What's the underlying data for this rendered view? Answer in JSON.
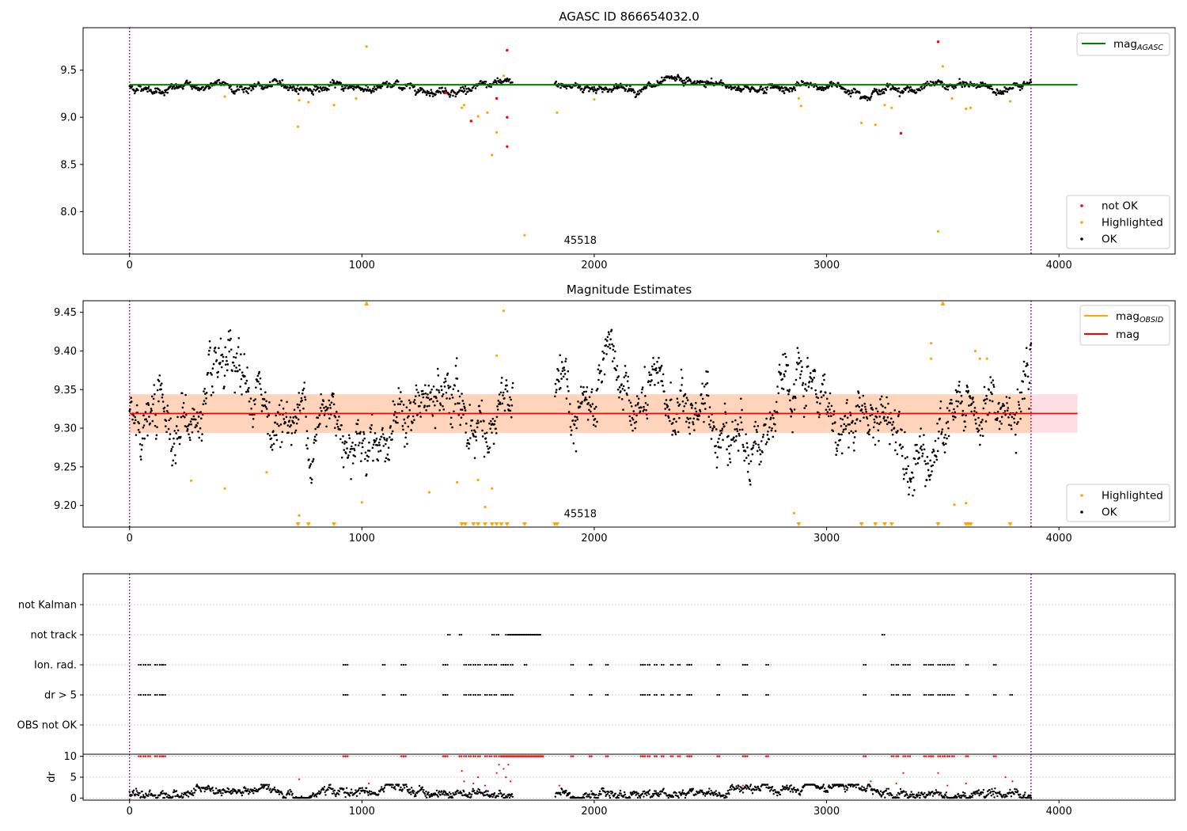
{
  "colors": {
    "ok": "#000000",
    "highlighted": "#ffa500",
    "not_ok": "#ff0000",
    "mag_agasc_line": "#008000",
    "mag_line": "#ff0000",
    "mag_obsid": "#ffa500",
    "band": "#ffb6c1",
    "obs_boundary": "#800080",
    "grid": "#b0b0b0"
  },
  "chart_data": [
    {
      "type": "scatter",
      "title": "AGASC ID 866654032.0",
      "xlim": [
        -200,
        4500
      ],
      "ylim": [
        7.55,
        9.95
      ],
      "xticks": [
        "0",
        "1000",
        "2000",
        "3000",
        "4000"
      ],
      "yticks": [
        "8.0",
        "8.5",
        "9.0",
        "9.5"
      ],
      "reference_line": {
        "name": "mag_AGASC",
        "y": 9.345,
        "x_range": [
          0,
          4080
        ]
      },
      "obs_boundaries": [
        0,
        3880
      ],
      "annotation": {
        "text": "45518",
        "x": 1940,
        "y": 7.66
      },
      "series": [
        {
          "name": "not OK",
          "color": "#ff0000",
          "points": [
            [
              1625,
              9.71
            ],
            [
              1470,
              8.96
            ],
            [
              1625,
              8.69
            ],
            [
              1625,
              9.0
            ],
            [
              1580,
              9.2
            ],
            [
              3320,
              8.83
            ],
            [
              3480,
              9.8
            ],
            [
              1360,
              9.26
            ]
          ]
        },
        {
          "name": "Highlighted",
          "color": "#ffa500",
          "points": [
            [
              1020,
              9.75
            ],
            [
              725,
              8.9
            ],
            [
              730,
              9.18
            ],
            [
              770,
              9.16
            ],
            [
              880,
              9.13
            ],
            [
              975,
              9.2
            ],
            [
              1700,
              7.75
            ],
            [
              1560,
              8.6
            ],
            [
              1580,
              8.84
            ],
            [
              1430,
              9.1
            ],
            [
              1440,
              9.13
            ],
            [
              1500,
              9.01
            ],
            [
              1540,
              9.05
            ],
            [
              1610,
              9.44
            ],
            [
              3150,
              8.94
            ],
            [
              3210,
              8.92
            ],
            [
              3250,
              9.13
            ],
            [
              3280,
              9.1
            ],
            [
              2880,
              9.2
            ],
            [
              2890,
              9.12
            ],
            [
              3480,
              7.79
            ],
            [
              3500,
              9.54
            ],
            [
              3540,
              9.2
            ],
            [
              3600,
              9.09
            ],
            [
              3620,
              9.1
            ],
            [
              3790,
              9.17
            ],
            [
              410,
              9.22
            ],
            [
              2000,
              9.19
            ],
            [
              1840,
              9.05
            ]
          ]
        },
        {
          "name": "OK",
          "color": "#000000",
          "generated": {
            "x_start": 0,
            "x_end": 3880,
            "gap": [
              1650,
              1830
            ],
            "center": 9.32,
            "spread": 0.03,
            "count": 1400
          }
        }
      ],
      "legend": [
        "not OK",
        "Highlighted",
        "OK",
        "mag_AGASC"
      ]
    },
    {
      "type": "scatter",
      "title": "Magnitude Estimates",
      "xlim": [
        -200,
        4500
      ],
      "ylim": [
        9.172,
        9.465
      ],
      "xticks": [
        "0",
        "1000",
        "2000",
        "3000",
        "4000"
      ],
      "yticks": [
        "9.20",
        "9.25",
        "9.30",
        "9.35",
        "9.40",
        "9.45"
      ],
      "mag_line": {
        "name": "mag",
        "y": 9.319,
        "x_range": [
          0,
          4080
        ]
      },
      "band": {
        "low": 9.294,
        "high": 9.344
      },
      "obs_boundaries": [
        0,
        3880
      ],
      "annotation": {
        "text": "45518",
        "x": 1940,
        "y": 9.185
      },
      "series": [
        {
          "name": "Highlighted",
          "color": "#ffa500",
          "points": [
            [
              1020,
              9.462
            ],
            [
              3500,
              9.462
            ],
            [
              1610,
              9.452
            ],
            [
              1580,
              9.394
            ],
            [
              3450,
              9.41
            ],
            [
              3450,
              9.39
            ],
            [
              3640,
              9.4
            ],
            [
              3660,
              9.39
            ],
            [
              3690,
              9.39
            ],
            [
              265,
              9.232
            ],
            [
              410,
              9.222
            ],
            [
              590,
              9.243
            ],
            [
              1000,
              9.204
            ],
            [
              1290,
              9.217
            ],
            [
              1410,
              9.23
            ],
            [
              1500,
              9.233
            ],
            [
              1560,
              9.222
            ],
            [
              1530,
              9.198
            ],
            [
              2860,
              9.19
            ],
            [
              3600,
              9.203
            ],
            [
              3550,
              9.201
            ],
            [
              730,
              9.187
            ]
          ]
        },
        {
          "name": "OK",
          "color": "#000000",
          "generated": {
            "x_start": 0,
            "x_end": 3880,
            "gap": [
              1650,
              1830
            ],
            "center": 9.315,
            "spread": 0.025,
            "count": 1800
          }
        }
      ],
      "lower_limit_markers_x": [
        725,
        770,
        880,
        1430,
        1445,
        1480,
        1500,
        1530,
        1560,
        1580,
        1600,
        1625,
        1700,
        1830,
        1840,
        2880,
        3150,
        3210,
        3250,
        3280,
        3480,
        3600,
        3610,
        3620,
        3790
      ],
      "legend": [
        "mag_OBSID",
        "mag",
        "Highlighted",
        "OK"
      ]
    },
    {
      "type": "scatter",
      "title": "",
      "xlim": [
        -200,
        4500
      ],
      "category_rows": [
        "not Kalman",
        "not track",
        "Ion. rad.",
        "dr > 5",
        "OBS not OK"
      ],
      "obs_boundaries": [
        0,
        3880
      ],
      "flags": {
        "not_track": [
          1370,
          1420,
          1560,
          1580,
          1620,
          {
            "range": [
              1630,
              1770
            ]
          },
          3240
        ],
        "ion_rad": [
          40,
          60,
          80,
          110,
          130,
          145,
          920,
          930,
          1090,
          1170,
          1180,
          1350,
          1360,
          1440,
          1460,
          1480,
          1500,
          1530,
          1550,
          1570,
          1600,
          1610,
          1620,
          1640,
          1700,
          1900,
          1980,
          2050,
          2200,
          2210,
          2230,
          2260,
          2290,
          2330,
          2360,
          2400,
          2410,
          2530,
          2640,
          2650,
          2740,
          3160,
          3280,
          3300,
          3330,
          3350,
          3420,
          3440,
          3450,
          3480,
          3500,
          3520,
          3540,
          3600,
          3720
        ],
        "dr_gt_5": [
          40,
          60,
          80,
          110,
          130,
          145,
          920,
          930,
          1090,
          1170,
          1180,
          1350,
          1360,
          1440,
          1460,
          1480,
          1500,
          1530,
          1550,
          1570,
          1600,
          1610,
          1620,
          1640,
          1900,
          1980,
          2050,
          2200,
          2210,
          2230,
          2260,
          2290,
          2330,
          2360,
          2400,
          2410,
          2530,
          2640,
          2650,
          2740,
          3160,
          3280,
          3300,
          3330,
          3350,
          3420,
          3440,
          3450,
          3480,
          3500,
          3520,
          3540,
          3600,
          3720,
          3790
        ]
      }
    },
    {
      "type": "scatter",
      "title": "",
      "ylabel": "dr",
      "xlim": [
        -200,
        4500
      ],
      "ylim": [
        -0.5,
        10.5
      ],
      "xticks": [
        "0",
        "1000",
        "2000",
        "3000",
        "4000"
      ],
      "yticks": [
        "0",
        "5",
        "10"
      ],
      "obs_boundaries": [
        0,
        3880
      ],
      "series": [
        {
          "name": "dr",
          "color": "#000000",
          "generated": {
            "x_start": 0,
            "x_end": 3880,
            "gap": [
              1650,
              1830
            ],
            "center": 1.3,
            "spread": 0.8,
            "count": 1500
          }
        },
        {
          "name": "dr high",
          "color": "#ff0000",
          "points": [
            [
              730,
              4.5
            ],
            [
              1030,
              3.5
            ],
            [
              1430,
              6.5
            ],
            [
              1440,
              4
            ],
            [
              1480,
              3.5
            ],
            [
              1500,
              5
            ],
            [
              1530,
              3
            ],
            [
              1580,
              6
            ],
            [
              1590,
              8
            ],
            [
              1610,
              7
            ],
            [
              1620,
              5
            ],
            [
              1630,
              8
            ],
            [
              1640,
              4
            ],
            [
              1850,
              3
            ],
            [
              2640,
              3
            ],
            [
              3190,
              4
            ],
            [
              3300,
              3.5
            ],
            [
              3330,
              6
            ],
            [
              3480,
              6
            ],
            [
              3520,
              3
            ],
            [
              3600,
              3.5
            ],
            [
              3770,
              5
            ],
            [
              3800,
              4
            ]
          ]
        }
      ],
      "clipped_at_10_x": [
        40,
        60,
        80,
        110,
        130,
        145,
        920,
        930,
        1170,
        1180,
        1350,
        1360,
        1420,
        1440,
        1460,
        1480,
        1500,
        1530,
        1550,
        1570,
        1590,
        {
          "range": [
            1600,
            1780
          ]
        },
        1900,
        1980,
        2050,
        2200,
        2210,
        2230,
        2260,
        2290,
        2330,
        2360,
        2400,
        2410,
        2530,
        2640,
        2650,
        2740,
        3160,
        3280,
        3300,
        3330,
        3350,
        3420,
        3440,
        3450,
        3480,
        3500,
        3520,
        3540,
        3600,
        3720
      ]
    }
  ]
}
